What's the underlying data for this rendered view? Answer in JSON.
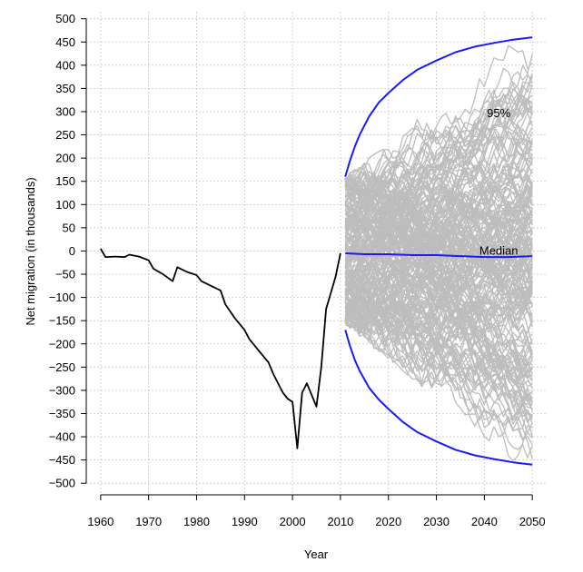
{
  "chart_data": {
    "type": "line",
    "xlabel": "Year",
    "ylabel": "Net migration (in thousands)",
    "xlim": [
      1957,
      2053
    ],
    "ylim": [
      -525,
      515
    ],
    "xticks": [
      1960,
      1970,
      1980,
      1990,
      2000,
      2010,
      2020,
      2030,
      2040,
      2050
    ],
    "yticks": [
      -500,
      -450,
      -400,
      -350,
      -300,
      -250,
      -200,
      -150,
      -100,
      -50,
      0,
      50,
      100,
      150,
      200,
      250,
      300,
      350,
      400,
      450,
      500
    ],
    "grid": true,
    "annotations": [
      {
        "text": "95%",
        "x": 2043,
        "y": 298
      },
      {
        "text": "Median",
        "x": 2043,
        "y": 0
      }
    ],
    "colors": {
      "observed": "#000000",
      "trajectories": "#bdbdbd",
      "median": "#1a1aff",
      "bounds": "#1a1aff",
      "grid": "#c8c8c8"
    },
    "observed": {
      "x": [
        1960,
        1961,
        1963,
        1965,
        1966,
        1968,
        1970,
        1971,
        1973,
        1975,
        1976,
        1978,
        1980,
        1981,
        1983,
        1985,
        1986,
        1988,
        1990,
        1991,
        1993,
        1995,
        1996,
        1998,
        1999,
        2000,
        2001,
        2002,
        2003,
        2005,
        2006,
        2007,
        2009,
        2010
      ],
      "y": [
        5,
        -13,
        -12,
        -13,
        -8,
        -12,
        -20,
        -38,
        -50,
        -65,
        -35,
        -45,
        -52,
        -65,
        -75,
        -85,
        -115,
        -145,
        -170,
        -190,
        -215,
        -240,
        -265,
        -305,
        -318,
        -325,
        -425,
        -305,
        -285,
        -335,
        -250,
        -125,
        -55,
        -5
      ]
    },
    "trajectories": {
      "count": 200,
      "x_start": 2011,
      "x_end": 2050,
      "range": [
        -490,
        490
      ]
    },
    "median": {
      "x": [
        2011,
        2015,
        2020,
        2025,
        2030,
        2035,
        2040,
        2045,
        2050
      ],
      "y": [
        -5,
        -7,
        -7,
        -9,
        -9,
        -11,
        -13,
        -13,
        -11
      ]
    },
    "upper_95": {
      "x": [
        2011,
        2012,
        2013,
        2014,
        2016,
        2018,
        2020,
        2023,
        2026,
        2030,
        2034,
        2038,
        2042,
        2046,
        2050
      ],
      "y": [
        160,
        195,
        225,
        250,
        290,
        320,
        340,
        368,
        390,
        410,
        428,
        440,
        448,
        455,
        460
      ]
    },
    "lower_95": {
      "x": [
        2011,
        2012,
        2013,
        2014,
        2016,
        2018,
        2020,
        2023,
        2026,
        2030,
        2034,
        2038,
        2042,
        2046,
        2050
      ],
      "y": [
        -170,
        -205,
        -235,
        -258,
        -295,
        -320,
        -340,
        -368,
        -390,
        -410,
        -428,
        -440,
        -448,
        -455,
        -460
      ]
    }
  }
}
